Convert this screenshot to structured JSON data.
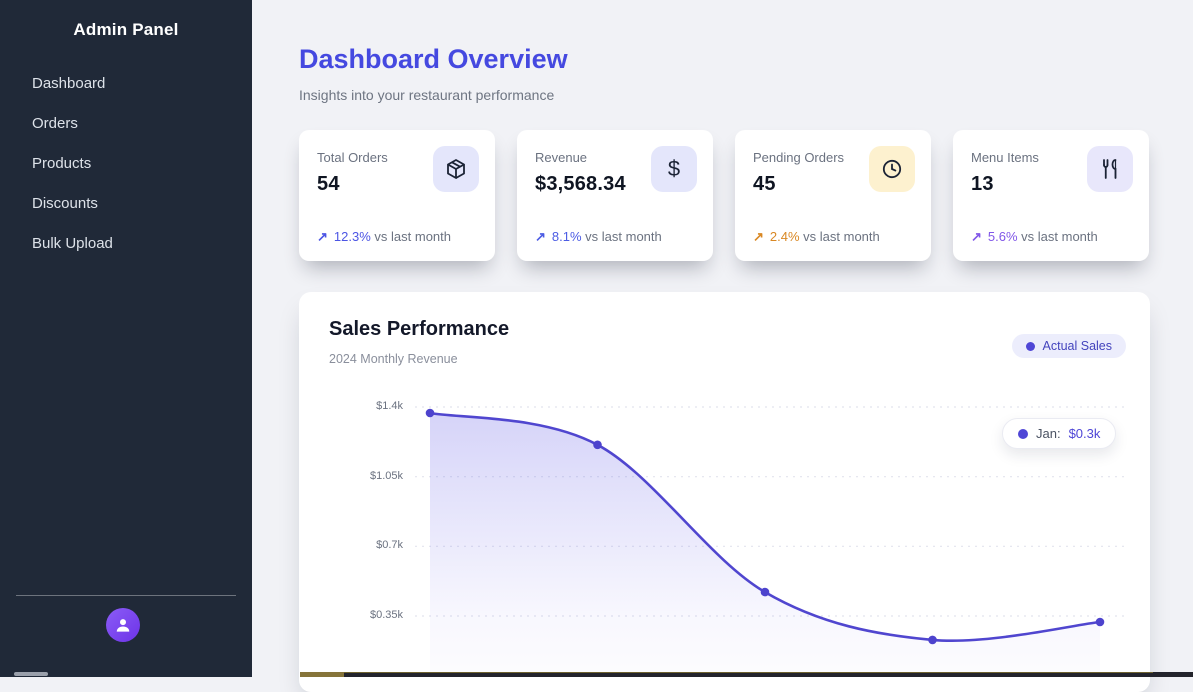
{
  "sidebar": {
    "title": "Admin Panel",
    "items": [
      {
        "label": "Dashboard"
      },
      {
        "label": "Orders"
      },
      {
        "label": "Products"
      },
      {
        "label": "Discounts"
      },
      {
        "label": "Bulk Upload"
      }
    ]
  },
  "header": {
    "title": "Dashboard Overview",
    "subtitle": "Insights into your restaurant performance"
  },
  "stats": [
    {
      "label": "Total Orders",
      "value": "54",
      "icon": "package-icon",
      "icon_bg": "#e4e6fb",
      "arrow": "↗",
      "trend_pct": "12.3%",
      "trend_suffix": "vs last month",
      "trend_color": "#4c55e4"
    },
    {
      "label": "Revenue",
      "value": "$3,568.34",
      "icon": "dollar-icon",
      "icon_bg": "#e4e6fb",
      "arrow": "↗",
      "trend_pct": "8.1%",
      "trend_suffix": "vs last month",
      "trend_color": "#4c5ce4"
    },
    {
      "label": "Pending Orders",
      "value": "45",
      "icon": "clock-icon",
      "icon_bg": "#fdf1cf",
      "arrow": "↗",
      "trend_pct": "2.4%",
      "trend_suffix": "vs last month",
      "trend_color": "#d98824"
    },
    {
      "label": "Menu Items",
      "value": "13",
      "icon": "utensils-icon",
      "icon_bg": "#e8e7fb",
      "arrow": "↗",
      "trend_pct": "5.6%",
      "trend_suffix": "vs last month",
      "trend_color": "#8157e8"
    }
  ],
  "chart_data": {
    "type": "area",
    "title": "Sales Performance",
    "subtitle": "2024 Monthly Revenue",
    "series": [
      {
        "name": "Actual Sales",
        "values": [
          1370,
          1210,
          470,
          230,
          320
        ]
      }
    ],
    "y_ticks": [
      "$1.4k",
      "$1.05k",
      "$0.7k",
      "$0.35k"
    ],
    "y_tick_values": [
      1400,
      1050,
      700,
      350
    ],
    "ylim": [
      0,
      1500
    ],
    "grid": "dashed-horizontal",
    "legend_position": "top-right",
    "tooltip": {
      "label": "Jan:",
      "value": "$0.3k"
    },
    "line_color": "#5046cf",
    "point_color": "#4d43cd",
    "fill_color": "#6b64e8"
  },
  "colors": {
    "sidebar_bg": "#202938",
    "page_bg": "#f1f2f6",
    "accent_title": "#4549e0",
    "legend_bg": "#ecedfc",
    "legend_text": "#4343bd",
    "trend_indigo": "#4c55e4",
    "trend_orange": "#d98824",
    "trend_purple": "#8157e8"
  }
}
